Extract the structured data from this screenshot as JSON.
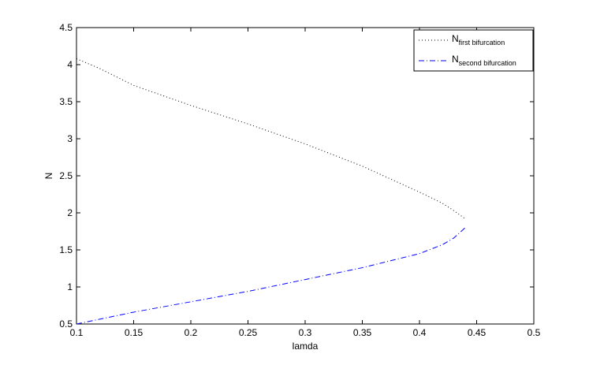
{
  "chart_data": {
    "type": "line",
    "xlabel": "lamda",
    "ylabel": "N",
    "xlim": [
      0.1,
      0.5
    ],
    "xticks": [
      0.1,
      0.15,
      0.2,
      0.25,
      0.3,
      0.35,
      0.4,
      0.45,
      0.5
    ],
    "ylim": [
      0.5,
      4.5
    ],
    "yticks": [
      0.5,
      1,
      1.5,
      2,
      2.5,
      3,
      3.5,
      4,
      4.5
    ],
    "grid": false,
    "legend": "upper right",
    "series": [
      {
        "name": "N",
        "name_sub": "first bifurcation",
        "color": "#000000",
        "style": "dotted",
        "x": [
          0.1,
          0.12,
          0.15,
          0.2,
          0.25,
          0.3,
          0.35,
          0.4,
          0.42,
          0.43,
          0.44
        ],
        "values": [
          4.08,
          3.95,
          3.72,
          3.45,
          3.2,
          2.93,
          2.63,
          2.28,
          2.13,
          2.03,
          1.92
        ]
      },
      {
        "name": "N",
        "name_sub": "second bifurcation",
        "color": "#0000ff",
        "style": "dashdot",
        "x": [
          0.1,
          0.15,
          0.2,
          0.25,
          0.3,
          0.35,
          0.4,
          0.42,
          0.43,
          0.44
        ],
        "values": [
          0.5,
          0.66,
          0.8,
          0.94,
          1.1,
          1.26,
          1.45,
          1.57,
          1.66,
          1.8
        ]
      }
    ]
  }
}
